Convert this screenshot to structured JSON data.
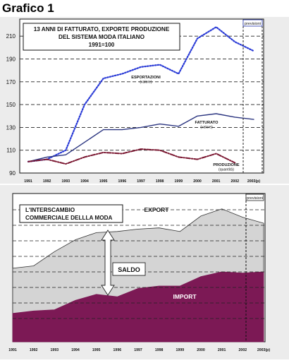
{
  "page_title": "Grafico 1",
  "chart_data": [
    {
      "type": "line",
      "title": "13 ANNI DI FATTURATO, EXPORTE PRODUZIONE\nDEL SISTEMA MODA ITALIANO\n1991=100",
      "x": [
        "1991",
        "1992",
        "1993",
        "1994",
        "1995",
        "1996",
        "1997",
        "1998",
        "1999",
        "2000",
        "2001",
        "2002",
        "2003(p)"
      ],
      "ylim": [
        90,
        225
      ],
      "yticks": [
        90,
        110,
        130,
        150,
        170,
        190,
        210
      ],
      "grid": "horizontal dashed",
      "forecast_label": "previsioni",
      "series": [
        {
          "name": "ESPORTAZIONI",
          "unit": "(valore)",
          "style": "dotted",
          "color": "#2a3bd6",
          "values": [
            100,
            102,
            110,
            150,
            173,
            177,
            183,
            185,
            177,
            208,
            218,
            205,
            197
          ]
        },
        {
          "name": "FATTURATO",
          "unit": "(valore)",
          "style": "solid",
          "color": "#2b3580",
          "values": [
            100,
            104,
            106,
            117,
            128,
            128,
            130,
            133,
            131,
            140,
            142,
            139,
            137
          ]
        },
        {
          "name": "PRODUZIONE",
          "unit": "(quantità)",
          "style": "dash-dot",
          "color": "#7a1630",
          "values": [
            100,
            102,
            98,
            104,
            108,
            107,
            111,
            110,
            104,
            102,
            107,
            99,
            null
          ]
        }
      ]
    },
    {
      "type": "area",
      "title": "L'INTERSCAMBIO\nCOMMERCIALE DELLLA MODA",
      "x": [
        "1991",
        "1992",
        "1993",
        "1994",
        "1995",
        "1996",
        "1997",
        "1998",
        "1999",
        "2000",
        "2001",
        "2002",
        "2003(p)"
      ],
      "forecast_label": "previsioni",
      "annotation": "SALDO",
      "series": [
        {
          "name": "EXPORT",
          "color": "#d4d4d4",
          "values": [
            62,
            64,
            76,
            86,
            92,
            93,
            95,
            96,
            93,
            106,
            112,
            105,
            100
          ]
        },
        {
          "name": "IMPORT",
          "color": "#7c1955",
          "values": [
            24,
            26,
            27,
            35,
            40,
            38,
            45,
            47,
            47,
            55,
            59,
            58,
            59
          ]
        }
      ],
      "ylim": [
        0,
        125
      ]
    }
  ]
}
